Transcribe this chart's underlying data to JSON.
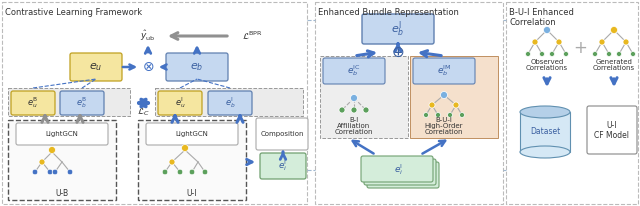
{
  "title1": "Contrastive Learning Framework",
  "title2": "Enhanced Bundle Representation",
  "title3": "B-U-I Enhanced\nCorrelation",
  "c_yellow": "#f5e6a0",
  "c_blue_box": "#c5d8f0",
  "c_green_box": "#d4edda",
  "c_orange_box": "#f5dfc0",
  "c_white": "#ffffff",
  "c_gray_bg": "#efefef",
  "arrow_blue": "#4472c4",
  "arrow_gray": "#909090",
  "text_blue": "#3a5fa0",
  "text_dark": "#333333",
  "n_yellow": "#e8b820",
  "n_blue": "#4472c4",
  "n_green": "#5ca05c",
  "n_lblue": "#7ab0e0"
}
